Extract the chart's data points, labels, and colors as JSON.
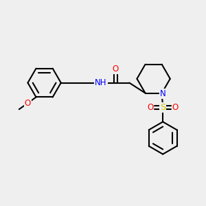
{
  "background_color": "#efefef",
  "bond_color": "#000000",
  "bond_width": 1.5,
  "atom_colors": {
    "O": "#ff0000",
    "N": "#0000ff",
    "S": "#cccc00",
    "C": "#000000",
    "H": "#000000"
  },
  "font_size": 8.5,
  "fig_size": [
    3.0,
    3.0
  ],
  "dpi": 100
}
